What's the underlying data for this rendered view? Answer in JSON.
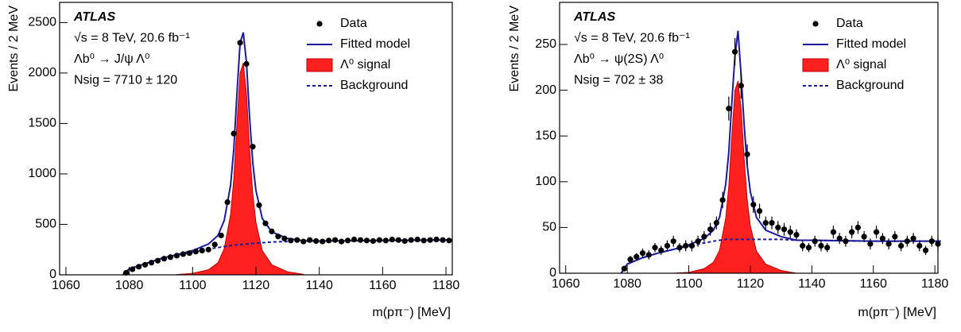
{
  "chart_data": [
    {
      "type": "scatter",
      "xlabel": "m(pπ⁻) [MeV]",
      "ylabel": "Events / 2 MeV",
      "annotations": [
        "ATLAS",
        "√s = 8 TeV, 20.6 fb⁻¹",
        "Λb⁰ → J/ψ Λ⁰",
        "Nsig = 7710 ± 120"
      ],
      "xlim": [
        1058,
        1182
      ],
      "xticks": [
        1060,
        1080,
        1100,
        1120,
        1140,
        1160,
        1180
      ],
      "ylim": [
        0,
        2700
      ],
      "yticks": [
        0,
        500,
        1000,
        1500,
        2000,
        2500
      ],
      "legend": "upper right",
      "series": [
        {
          "name": "Λ⁰ signal",
          "kind": "area",
          "color": "#ff2020",
          "x": [
            1095,
            1100,
            1105,
            1108,
            1110,
            1112,
            1113,
            1114,
            1115,
            1116,
            1117,
            1118,
            1119,
            1120,
            1122,
            1125,
            1130,
            1135
          ],
          "values": [
            2,
            15,
            50,
            120,
            260,
            600,
            950,
            1500,
            2000,
            2100,
            1800,
            1250,
            800,
            520,
            240,
            100,
            30,
            5
          ]
        },
        {
          "name": "Background",
          "kind": "dashed",
          "color": "#1a1aa0",
          "x": [
            1078,
            1080,
            1085,
            1090,
            1095,
            1100,
            1105,
            1108,
            1110,
            1112,
            1113,
            1114,
            1115,
            1116,
            1117,
            1118,
            1119,
            1120,
            1122,
            1125,
            1130,
            1135,
            1140,
            1160,
            1182
          ],
          "values": [
            0,
            60,
            110,
            160,
            195,
            225,
            255,
            270,
            280,
            290,
            294,
            297,
            300,
            302,
            305,
            308,
            311,
            315,
            318,
            325,
            330,
            333,
            335,
            340,
            345
          ]
        },
        {
          "name": "Fitted model",
          "kind": "line",
          "color": "#1a1aa0",
          "x": [
            1078,
            1080,
            1085,
            1090,
            1095,
            1100,
            1105,
            1108,
            1110,
            1112,
            1113,
            1114,
            1115,
            1116,
            1117,
            1118,
            1119,
            1120,
            1122,
            1125,
            1130,
            1135,
            1140,
            1160,
            1182
          ],
          "values": [
            0,
            60,
            110,
            162,
            200,
            240,
            305,
            390,
            540,
            890,
            1244,
            1797,
            2300,
            2402,
            2105,
            1558,
            1111,
            835,
            558,
            425,
            360,
            338,
            335,
            340,
            345
          ]
        },
        {
          "name": "Data",
          "kind": "points",
          "color": "#000000",
          "x": [
            1079,
            1081,
            1083,
            1085,
            1087,
            1089,
            1091,
            1093,
            1095,
            1097,
            1099,
            1101,
            1103,
            1105,
            1107,
            1109,
            1111,
            1113,
            1115,
            1117,
            1119,
            1121,
            1123,
            1125,
            1127,
            1129,
            1131,
            1133,
            1135,
            1137,
            1139,
            1141,
            1143,
            1145,
            1147,
            1149,
            1151,
            1153,
            1155,
            1157,
            1159,
            1161,
            1163,
            1165,
            1167,
            1169,
            1171,
            1173,
            1175,
            1177,
            1179,
            1181
          ],
          "values": [
            20,
            55,
            80,
            100,
            120,
            140,
            160,
            175,
            190,
            205,
            215,
            230,
            240,
            250,
            300,
            390,
            720,
            1400,
            2300,
            2090,
            1270,
            690,
            510,
            430,
            380,
            360,
            340,
            345,
            330,
            345,
            335,
            330,
            340,
            345,
            330,
            340,
            350,
            345,
            340,
            335,
            345,
            340,
            350,
            345,
            335,
            345,
            350,
            340,
            345,
            350,
            345,
            340
          ]
        }
      ]
    },
    {
      "type": "scatter",
      "xlabel": "m(pπ⁻) [MeV]",
      "ylabel": "Events / 2 MeV",
      "annotations": [
        "ATLAS",
        "√s = 8 TeV, 20.6 fb⁻¹",
        "Λb⁰ → ψ(2S) Λ⁰",
        "Nsig = 702 ± 38"
      ],
      "xlim": [
        1058,
        1181
      ],
      "xticks": [
        1060,
        1080,
        1100,
        1120,
        1140,
        1160,
        1180
      ],
      "ylim": [
        0,
        296
      ],
      "yticks": [
        0,
        50,
        100,
        150,
        200,
        250
      ],
      "legend": "upper right",
      "series": [
        {
          "name": "Λ⁰ signal",
          "kind": "area",
          "color": "#ff2020",
          "x": [
            1095,
            1100,
            1105,
            1108,
            1110,
            1112,
            1113,
            1114,
            1115,
            1116,
            1117,
            1118,
            1119,
            1120,
            1122,
            1125,
            1130,
            1135
          ],
          "values": [
            0,
            1,
            5,
            12,
            25,
            60,
            95,
            150,
            200,
            210,
            180,
            125,
            80,
            52,
            24,
            10,
            3,
            0
          ]
        },
        {
          "name": "Background",
          "kind": "dashed",
          "color": "#1a1aa0",
          "x": [
            1078,
            1080,
            1085,
            1090,
            1095,
            1100,
            1105,
            1108,
            1110,
            1112,
            1113,
            1114,
            1115,
            1116,
            1117,
            1118,
            1119,
            1120,
            1122,
            1125,
            1130,
            1135,
            1140,
            1160,
            1182
          ],
          "values": [
            0,
            10,
            17,
            22,
            26,
            30,
            33,
            35,
            36,
            37,
            37,
            37,
            37,
            37,
            37,
            37,
            37,
            37,
            37,
            37,
            37,
            36,
            36,
            35,
            35
          ]
        },
        {
          "name": "Fitted model",
          "kind": "line",
          "color": "#1a1aa0",
          "x": [
            1078,
            1080,
            1085,
            1090,
            1095,
            1100,
            1105,
            1108,
            1110,
            1112,
            1113,
            1114,
            1115,
            1116,
            1117,
            1118,
            1119,
            1120,
            1122,
            1125,
            1130,
            1135,
            1140,
            1160,
            1182
          ],
          "values": [
            0,
            10,
            17,
            22,
            26,
            31,
            38,
            47,
            61,
            97,
            132,
            187,
            237,
            265,
            217,
            162,
            117,
            89,
            61,
            47,
            40,
            36,
            36,
            35,
            35
          ]
        },
        {
          "name": "Data",
          "kind": "points",
          "color": "#000000",
          "x": [
            1079,
            1081,
            1083,
            1085,
            1087,
            1089,
            1091,
            1093,
            1095,
            1097,
            1099,
            1101,
            1103,
            1105,
            1107,
            1109,
            1111,
            1113,
            1115,
            1117,
            1119,
            1121,
            1123,
            1125,
            1127,
            1129,
            1131,
            1133,
            1135,
            1137,
            1139,
            1141,
            1143,
            1145,
            1147,
            1149,
            1151,
            1153,
            1155,
            1157,
            1159,
            1161,
            1163,
            1165,
            1167,
            1169,
            1171,
            1173,
            1175,
            1177,
            1179,
            1181
          ],
          "values": [
            5,
            15,
            18,
            22,
            20,
            28,
            25,
            30,
            35,
            28,
            30,
            30,
            35,
            40,
            48,
            55,
            80,
            180,
            242,
            205,
            130,
            75,
            68,
            55,
            55,
            50,
            48,
            45,
            42,
            30,
            28,
            35,
            30,
            28,
            45,
            38,
            35,
            45,
            50,
            40,
            32,
            45,
            38,
            32,
            40,
            30,
            35,
            38,
            30,
            25,
            35,
            32
          ],
          "errors": [
            3,
            4,
            4,
            5,
            5,
            5,
            5,
            6,
            6,
            5,
            6,
            6,
            6,
            6,
            7,
            7,
            9,
            13,
            15,
            14,
            11,
            9,
            8,
            7,
            7,
            7,
            7,
            7,
            6,
            6,
            5,
            6,
            6,
            5,
            7,
            6,
            6,
            7,
            7,
            6,
            6,
            7,
            6,
            6,
            6,
            6,
            6,
            6,
            6,
            5,
            6,
            6
          ]
        }
      ]
    }
  ]
}
